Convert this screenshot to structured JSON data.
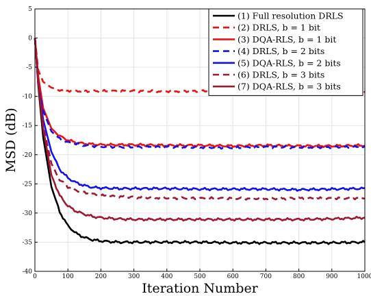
{
  "chart_data": {
    "type": "line",
    "title": "",
    "xlabel": "Iteration Number",
    "ylabel": "MSD (dB)",
    "xlim": [
      0,
      1000
    ],
    "ylim": [
      -40,
      5
    ],
    "xticks": [
      "0",
      "100",
      "200",
      "300",
      "400",
      "500",
      "600",
      "700",
      "800",
      "900",
      "1000"
    ],
    "yticks": [
      "5",
      "0",
      "-5",
      "-10",
      "-15",
      "-20",
      "-25",
      "-30",
      "-35",
      "-40"
    ],
    "grid": true,
    "legend_position": "top-right",
    "series": [
      {
        "name": "(1) Full resolution DRLS",
        "color": "#000000",
        "dash": "solid",
        "x": [
          0,
          10,
          25,
          50,
          75,
          100,
          125,
          150,
          175,
          200,
          250,
          300,
          400,
          500,
          600,
          700,
          800,
          900,
          1000
        ],
        "values": [
          0,
          -8,
          -17,
          -25.5,
          -29.8,
          -32.2,
          -33.5,
          -34.2,
          -34.6,
          -34.8,
          -35.0,
          -35.0,
          -35.0,
          -35.0,
          -35.1,
          -35.1,
          -35.1,
          -35.1,
          -35.0
        ]
      },
      {
        "name": "(2) DRLS, b = 1 bit",
        "color": "#ee1111",
        "dash": "dashed",
        "x": [
          0,
          10,
          25,
          50,
          75,
          100,
          150,
          200,
          300,
          400,
          500,
          600,
          700,
          800,
          900,
          1000
        ],
        "values": [
          0,
          -5.5,
          -7.5,
          -8.5,
          -8.9,
          -9.0,
          -9.1,
          -9.1,
          -9.1,
          -9.1,
          -9.1,
          -9.1,
          -9.1,
          -9.1,
          -9.1,
          -9.1
        ]
      },
      {
        "name": "(3) DQA-RLS, b = 1 bit",
        "color": "#ee1111",
        "dash": "solid",
        "x": [
          0,
          10,
          25,
          50,
          75,
          100,
          125,
          150,
          200,
          250,
          300,
          400,
          500,
          600,
          700,
          800,
          900,
          1000
        ],
        "values": [
          0,
          -6.5,
          -12,
          -15.5,
          -16.8,
          -17.5,
          -17.9,
          -18.1,
          -18.3,
          -18.3,
          -18.3,
          -18.4,
          -18.4,
          -18.5,
          -18.4,
          -18.5,
          -18.5,
          -18.4
        ]
      },
      {
        "name": "(4) DRLS, b = 2 bits",
        "color": "#1111ee",
        "dash": "dashed",
        "x": [
          0,
          10,
          25,
          50,
          75,
          100,
          150,
          200,
          300,
          400,
          500,
          600,
          700,
          800,
          900,
          1000
        ],
        "values": [
          0,
          -8,
          -12.5,
          -16,
          -17.3,
          -17.9,
          -18.4,
          -18.6,
          -18.7,
          -18.7,
          -18.7,
          -18.8,
          -18.7,
          -18.7,
          -18.7,
          -18.7
        ]
      },
      {
        "name": "(5) DQA-RLS, b = 2 bits",
        "color": "#1111ee",
        "dash": "solid",
        "x": [
          0,
          10,
          25,
          50,
          75,
          100,
          125,
          150,
          175,
          200,
          250,
          300,
          400,
          500,
          600,
          700,
          800,
          900,
          1000
        ],
        "values": [
          0,
          -7.5,
          -14,
          -19.5,
          -22.5,
          -24.0,
          -24.8,
          -25.3,
          -25.6,
          -25.7,
          -25.8,
          -25.8,
          -25.8,
          -25.9,
          -25.9,
          -25.9,
          -26.0,
          -25.9,
          -25.8
        ]
      },
      {
        "name": "(6) DRLS, b = 3 bits",
        "color": "#a01830",
        "dash": "dashed",
        "x": [
          0,
          10,
          25,
          50,
          75,
          100,
          125,
          150,
          200,
          250,
          300,
          400,
          500,
          600,
          700,
          800,
          900,
          1000
        ],
        "values": [
          0,
          -7.5,
          -15,
          -21.5,
          -24.3,
          -25.5,
          -26.1,
          -26.5,
          -27.0,
          -27.2,
          -27.3,
          -27.4,
          -27.5,
          -27.5,
          -27.5,
          -27.5,
          -27.5,
          -27.4
        ]
      },
      {
        "name": "(7) DQA-RLS, b = 3 bits",
        "color": "#a01830",
        "dash": "solid",
        "x": [
          0,
          10,
          25,
          50,
          75,
          100,
          125,
          150,
          175,
          200,
          250,
          300,
          400,
          500,
          600,
          700,
          800,
          900,
          1000
        ],
        "values": [
          0,
          -7.5,
          -15.5,
          -23.5,
          -27.0,
          -28.8,
          -29.7,
          -30.2,
          -30.6,
          -30.8,
          -31.0,
          -31.1,
          -31.1,
          -31.1,
          -31.1,
          -31.1,
          -31.1,
          -31.0,
          -30.8
        ]
      }
    ]
  }
}
